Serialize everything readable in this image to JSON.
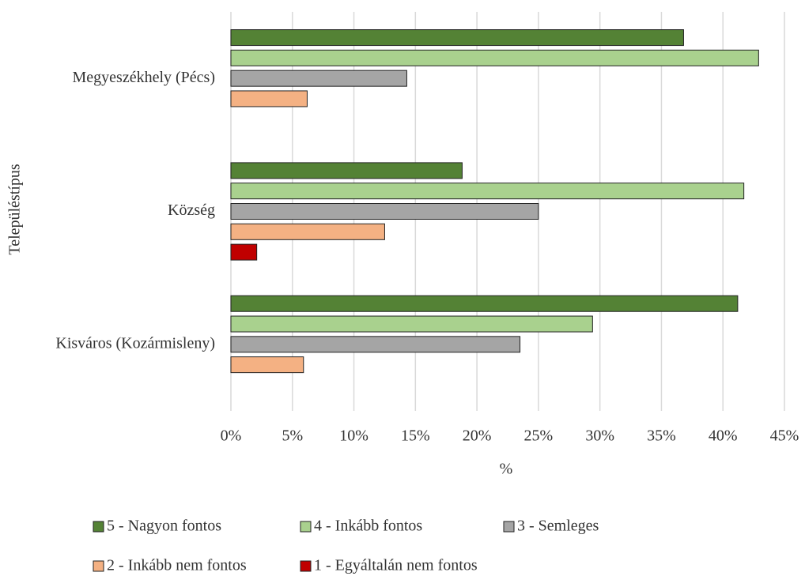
{
  "chart_data": {
    "type": "hbar",
    "x_label": "%",
    "y_label": "Településtípus",
    "categories": [
      "Megyeszékhely (Pécs)",
      "Község",
      "Kisváros (Kozármisleny)"
    ],
    "series": [
      {
        "name": "5 - Nagyon fontos",
        "color": "#548235",
        "values": [
          36.8,
          18.8,
          41.2
        ]
      },
      {
        "name": "4 - Inkább fontos",
        "color": "#a9d18e",
        "values": [
          42.9,
          41.7,
          29.4
        ]
      },
      {
        "name": "3 - Semleges",
        "color": "#a5a5a5",
        "values": [
          14.3,
          25.0,
          23.5
        ]
      },
      {
        "name": "2 - Inkább nem fontos",
        "color": "#f4b183",
        "values": [
          6.2,
          12.5,
          5.9
        ]
      },
      {
        "name": "1 - Egyáltalán nem fontos",
        "color": "#c00000",
        "values": [
          0,
          2.1,
          0
        ]
      }
    ],
    "xlim": [
      0,
      45
    ],
    "xticks": [
      {
        "value": 0,
        "label": "0%"
      },
      {
        "value": 5,
        "label": "5%"
      },
      {
        "value": 10,
        "label": "10%"
      },
      {
        "value": 15,
        "label": "15%"
      },
      {
        "value": 20,
        "label": "20%"
      },
      {
        "value": 25,
        "label": "25%"
      },
      {
        "value": 30,
        "label": "30%"
      },
      {
        "value": 35,
        "label": "35%"
      },
      {
        "value": 40,
        "label": "40%"
      },
      {
        "value": 45,
        "label": "45%"
      }
    ],
    "grid": true,
    "legend": "bottom"
  }
}
